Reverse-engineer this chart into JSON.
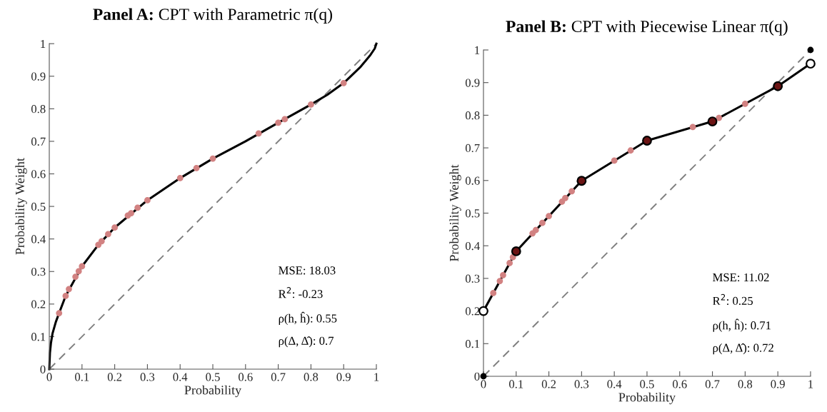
{
  "chart_data": [
    {
      "type": "line",
      "title": "Panel A: CPT with Parametric π(q)",
      "xlabel": "Probability",
      "ylabel": "Probability Weight",
      "xlim": [
        0,
        1
      ],
      "ylim": [
        0,
        1
      ],
      "xticks": [
        0,
        0.1,
        0.2,
        0.3,
        0.4,
        0.5,
        0.6,
        0.7,
        0.8,
        0.9,
        1
      ],
      "yticks": [
        0,
        0.1,
        0.2,
        0.3,
        0.4,
        0.5,
        0.6,
        0.7,
        0.8,
        0.9,
        1
      ],
      "grid": false,
      "series": [
        {
          "line_style": "dashed",
          "color": "#808080",
          "x": [
            0,
            1
          ],
          "values": [
            0,
            1
          ]
        },
        {
          "line_style": "solid",
          "color": "#000000",
          "x": [
            0,
            0.002,
            0.005,
            0.01,
            0.02,
            0.03,
            0.05,
            0.1,
            0.15,
            0.2,
            0.3,
            0.4,
            0.5,
            0.6,
            0.7,
            0.8,
            0.85,
            0.9,
            0.95,
            0.98,
            0.995,
            1
          ],
          "values": [
            0,
            0.05,
            0.08,
            0.11,
            0.145,
            0.172,
            0.225,
            0.316,
            0.382,
            0.435,
            0.519,
            0.587,
            0.647,
            0.7,
            0.757,
            0.813,
            0.843,
            0.879,
            0.927,
            0.963,
            0.985,
            1
          ]
        },
        {
          "type": "scatter",
          "marker": "circle",
          "color": "#d28282",
          "x": [
            0.03,
            0.05,
            0.06,
            0.08,
            0.09,
            0.1,
            0.15,
            0.16,
            0.18,
            0.2,
            0.24,
            0.25,
            0.27,
            0.3,
            0.4,
            0.45,
            0.5,
            0.64,
            0.7,
            0.72,
            0.8,
            0.9
          ],
          "values": [
            0.172,
            0.225,
            0.246,
            0.284,
            0.301,
            0.316,
            0.382,
            0.393,
            0.415,
            0.435,
            0.472,
            0.479,
            0.496,
            0.519,
            0.587,
            0.618,
            0.647,
            0.724,
            0.757,
            0.768,
            0.813,
            0.879
          ]
        }
      ],
      "annotations": [
        "MSE: 18.03",
        "R$^{2}$: -0.23",
        "ρ(h, ĥ): 0.55",
        "ρ(Δ, Δ̂): 0.7"
      ]
    },
    {
      "type": "line",
      "title": "Panel B: CPT with Piecewise Linear π(q)",
      "xlabel": "Probability",
      "ylabel": "Probability Weight",
      "xlim": [
        0,
        1
      ],
      "ylim": [
        0,
        1
      ],
      "xticks": [
        0,
        0.1,
        0.2,
        0.3,
        0.4,
        0.5,
        0.6,
        0.7,
        0.8,
        0.9,
        1
      ],
      "yticks": [
        0,
        0.1,
        0.2,
        0.3,
        0.4,
        0.5,
        0.6,
        0.7,
        0.8,
        0.9,
        1
      ],
      "grid": false,
      "series": [
        {
          "line_style": "dashed",
          "color": "#808080",
          "x": [
            0,
            1
          ],
          "values": [
            0,
            1
          ]
        },
        {
          "type": "scatter",
          "marker": "circle",
          "color": "#d28282",
          "x": [
            0.03,
            0.05,
            0.06,
            0.08,
            0.09,
            0.15,
            0.16,
            0.18,
            0.2,
            0.24,
            0.25,
            0.27,
            0.4,
            0.45,
            0.64,
            0.72,
            0.8
          ],
          "values": [
            0.255,
            0.292,
            0.31,
            0.347,
            0.365,
            0.438,
            0.448,
            0.47,
            0.491,
            0.535,
            0.546,
            0.567,
            0.661,
            0.692,
            0.764,
            0.792,
            0.835
          ]
        },
        {
          "line_style": "solid",
          "color": "#000000",
          "x": [
            0,
            0.1,
            0.3,
            0.5,
            0.7,
            0.9,
            1
          ],
          "values": [
            0.2,
            0.383,
            0.599,
            0.722,
            0.781,
            0.889,
            0.958
          ]
        },
        {
          "type": "scatter",
          "marker": "circle",
          "color": "#6b1414",
          "x": [
            0.1,
            0.3,
            0.5,
            0.7,
            0.9
          ],
          "values": [
            0.383,
            0.599,
            0.722,
            0.781,
            0.889
          ]
        },
        {
          "type": "scatter",
          "marker": "circle",
          "color": "#ffffff",
          "x": [
            0,
            1
          ],
          "values": [
            0.2,
            0.958
          ]
        },
        {
          "type": "scatter",
          "marker": "circle",
          "color": "#000000",
          "x": [
            0,
            1
          ],
          "values": [
            0,
            1
          ]
        }
      ],
      "annotations": [
        "MSE: 11.02",
        "R$^{2}$: 0.25",
        "ρ(h, ĥ): 0.71",
        "ρ(Δ, Δ̂): 0.72"
      ]
    }
  ]
}
